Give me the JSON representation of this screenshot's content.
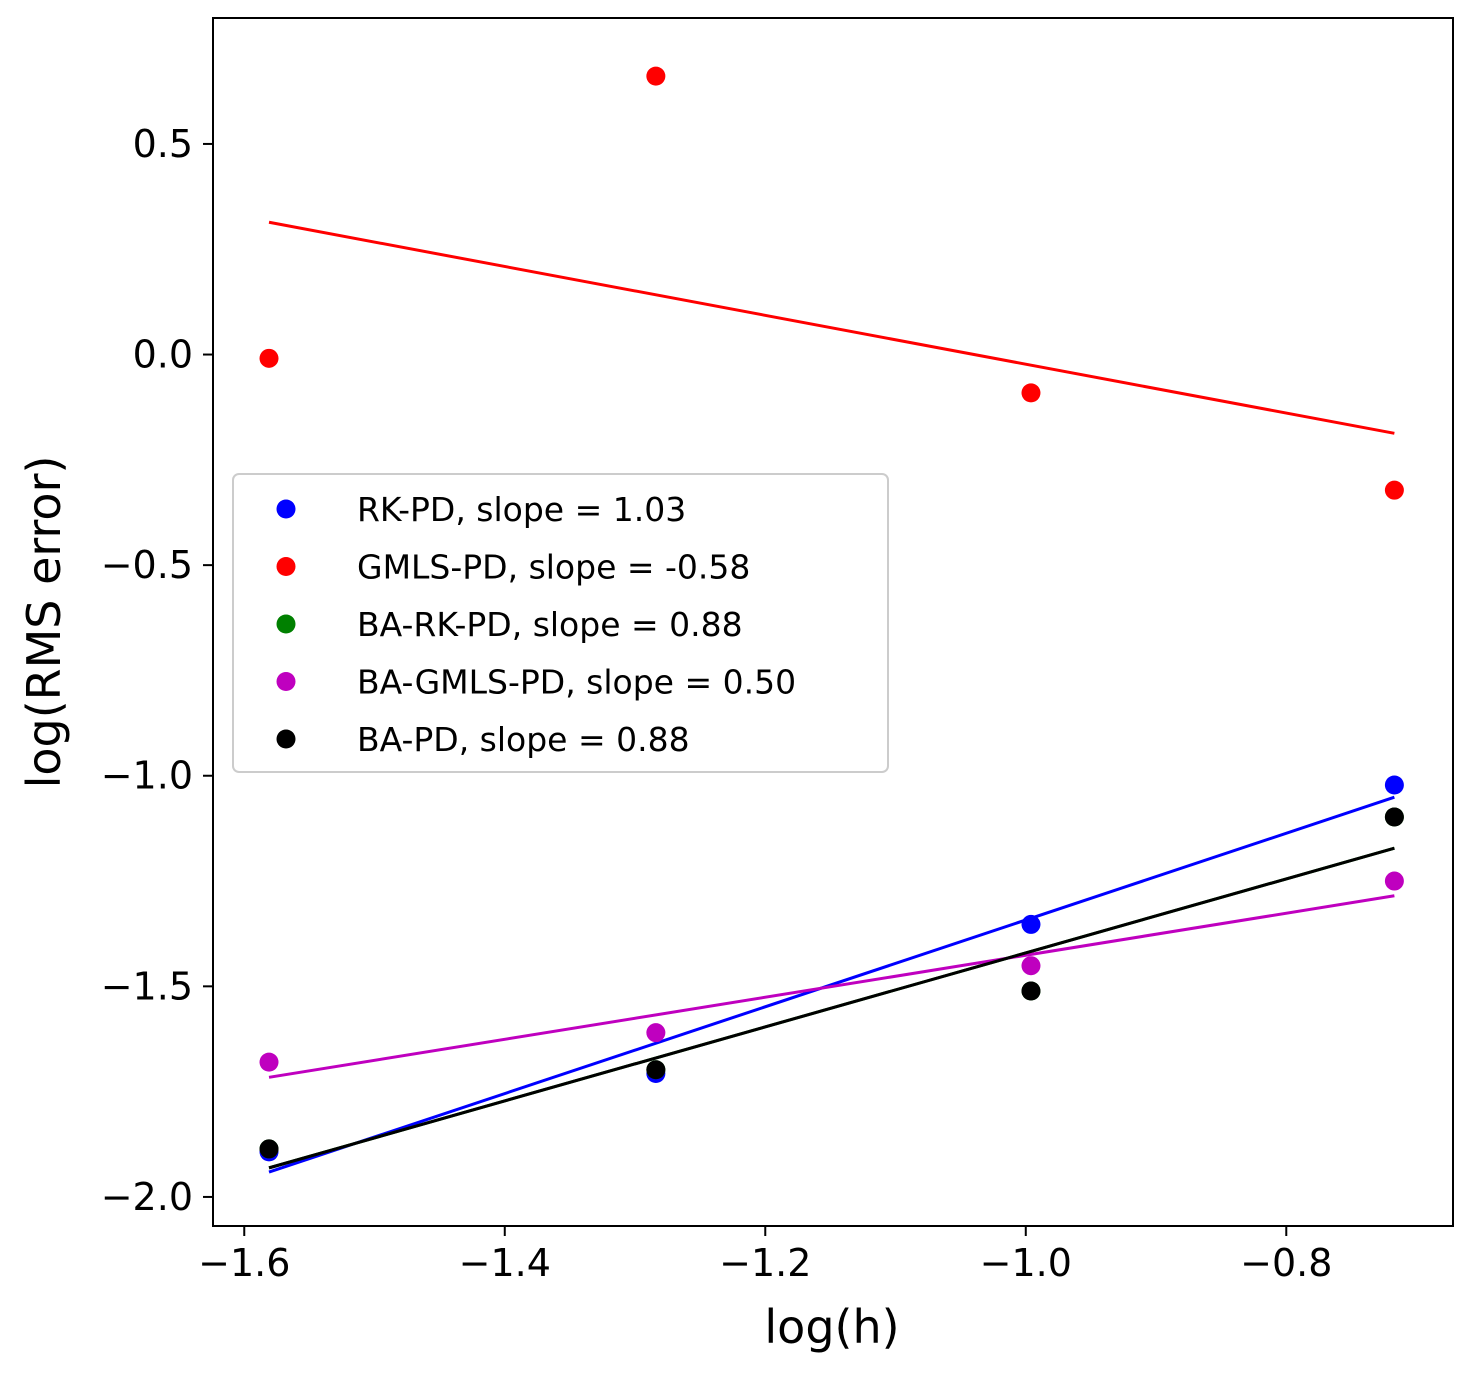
{
  "chart_data": {
    "type": "scatter",
    "title": "",
    "xlabel": "log(h)",
    "ylabel": "log(RMS error)",
    "xlim": [
      -1.624,
      -0.672
    ],
    "ylim": [
      -2.069,
      0.799
    ],
    "x_ticks": [
      -1.6,
      -1.4,
      -1.2,
      -1.0,
      -0.8
    ],
    "y_ticks": [
      -2.0,
      -1.5,
      -1.0,
      -0.5,
      0.0,
      0.5
    ],
    "x_tick_labels": [
      "−1.6",
      "−1.4",
      "−1.2",
      "−1.0",
      "−0.8"
    ],
    "y_tick_labels": [
      "−2.0",
      "−1.5",
      "−1.0",
      "−0.5",
      "0.0",
      "0.5"
    ],
    "grid": false,
    "legend_position": "center-left",
    "x": [
      -1.581,
      -1.284,
      -0.996,
      -0.717
    ],
    "series": [
      {
        "name": "RK-PD, slope = 1.03",
        "color": "#0000ff",
        "points": [
          -1.893,
          -1.707,
          -1.353,
          -1.022
        ],
        "fit": [
          -1.941,
          -1.635,
          -1.338,
          -1.051
        ]
      },
      {
        "name": "GMLS-PD, slope = -0.58",
        "color": "#ff0000",
        "points": [
          -0.009,
          0.661,
          -0.091,
          -0.322
        ],
        "fit": [
          0.314,
          0.142,
          -0.025,
          -0.187
        ]
      },
      {
        "name": "BA-RK-PD, slope = 0.88",
        "color": "#008000",
        "points": [
          -1.886,
          -1.698,
          -1.511,
          -1.098
        ],
        "fit": [
          -1.931,
          -1.67,
          -1.417,
          -1.172
        ]
      },
      {
        "name": "BA-GMLS-PD, slope = 0.50",
        "color": "#bf00bf",
        "points": [
          -1.68,
          -1.61,
          -1.451,
          -1.25
        ],
        "fit": [
          -1.716,
          -1.568,
          -1.424,
          -1.285
        ]
      },
      {
        "name": "BA-PD, slope = 0.88",
        "color": "#000000",
        "points": [
          -1.886,
          -1.698,
          -1.511,
          -1.098
        ],
        "fit": [
          -1.931,
          -1.67,
          -1.417,
          -1.172
        ]
      }
    ]
  }
}
